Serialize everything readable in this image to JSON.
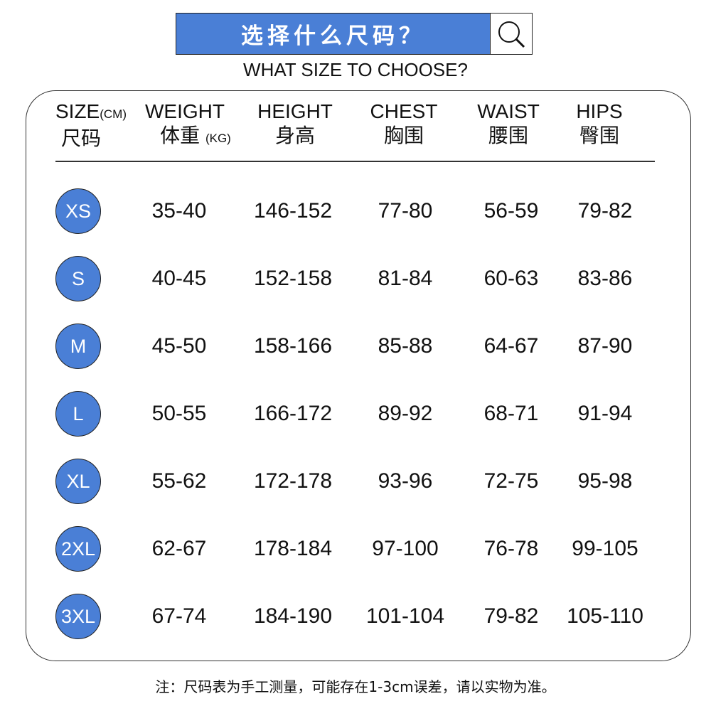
{
  "header": {
    "title_cn": "选择什么尺码？",
    "title_en": "WHAT SIZE TO CHOOSE?",
    "search_icon": "magnifier-icon",
    "accent_color": "#4a7fd6"
  },
  "columns": [
    {
      "en": "SIZE",
      "unit": "(CM)",
      "cn": "尺码"
    },
    {
      "en": "WEIGHT",
      "cn": "体重",
      "unit": "(KG)"
    },
    {
      "en": "HEIGHT",
      "cn": "身高"
    },
    {
      "en": "CHEST",
      "cn": "胸围"
    },
    {
      "en": "WAIST",
      "cn": "腰围"
    },
    {
      "en": "HIPS",
      "cn": "臀围"
    }
  ],
  "rows": [
    {
      "size": "XS",
      "weight": "35-40",
      "height": "146-152",
      "chest": "77-80",
      "waist": "56-59",
      "hips": "79-82"
    },
    {
      "size": "S",
      "weight": "40-45",
      "height": "152-158",
      "chest": "81-84",
      "waist": "60-63",
      "hips": "83-86"
    },
    {
      "size": "M",
      "weight": "45-50",
      "height": "158-166",
      "chest": "85-88",
      "waist": "64-67",
      "hips": "87-90"
    },
    {
      "size": "L",
      "weight": "50-55",
      "height": "166-172",
      "chest": "89-92",
      "waist": "68-71",
      "hips": "91-94"
    },
    {
      "size": "XL",
      "weight": "55-62",
      "height": "172-178",
      "chest": "93-96",
      "waist": "72-75",
      "hips": "95-98"
    },
    {
      "size": "2XL",
      "weight": "62-67",
      "height": "178-184",
      "chest": "97-100",
      "waist": "76-78",
      "hips": "99-105"
    },
    {
      "size": "3XL",
      "weight": "67-74",
      "height": "184-190",
      "chest": "101-104",
      "waist": "79-82",
      "hips": "105-110"
    }
  ],
  "note": "注：尺码表为手工测量，可能存在1-3cm误差，请以实物为准。"
}
